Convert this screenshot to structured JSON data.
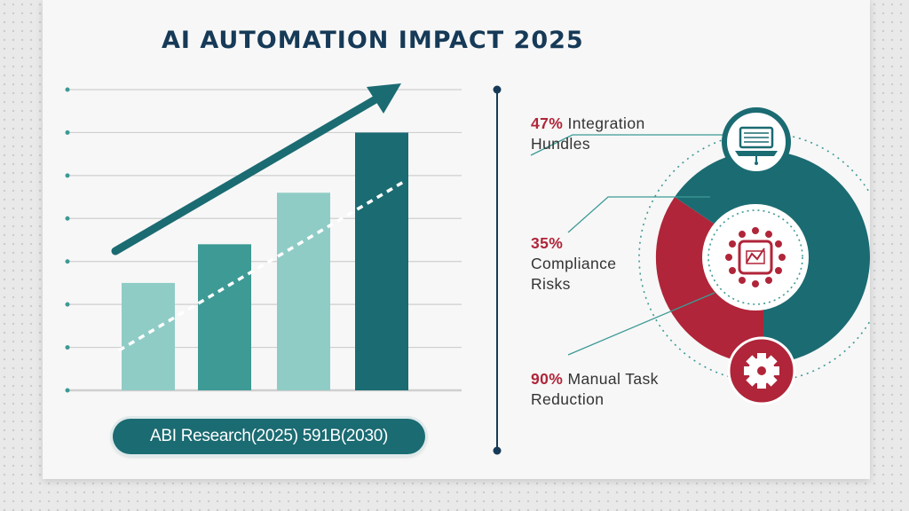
{
  "title": "AI AUTOMATION IMPACT 2025",
  "source_label": "ABI Research(2025) 591B(2030)",
  "colors": {
    "teal_dark": "#1b6b72",
    "teal_mid": "#3d9a95",
    "teal_light": "#8fccc6",
    "red": "#b02539",
    "navy": "#163a57"
  },
  "chart_data": {
    "type": "bar",
    "title": "AI AUTOMATION IMPACT 2025",
    "categories": [
      "",
      "",
      "",
      ""
    ],
    "values": [
      25,
      34,
      46,
      60
    ],
    "ylim": [
      0,
      70
    ],
    "grid": true,
    "trend": "upward arrow and dashed trend line"
  },
  "factors": [
    {
      "percent": "47%",
      "text": "Integration Hundles",
      "icon": "laptop-icon"
    },
    {
      "percent": "35%",
      "text": "Compliance Risks",
      "icon": "ai-chip-icon"
    },
    {
      "percent": "90%",
      "text": "Manual Task Reduction",
      "icon": "gear-icon"
    }
  ]
}
